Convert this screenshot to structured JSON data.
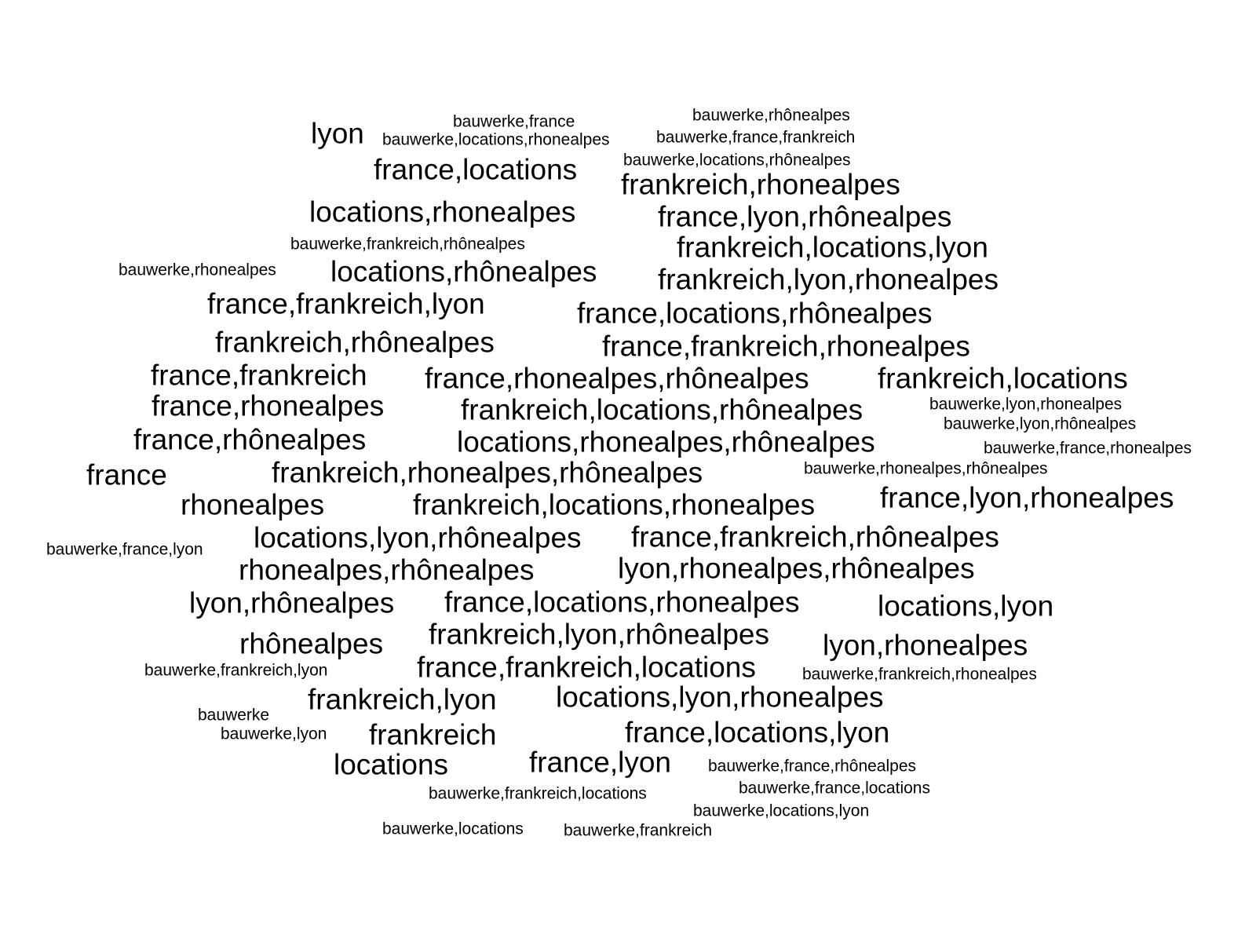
{
  "words": [
    {
      "text": "lyon",
      "weight": "large"
    },
    {
      "text": "bauwerke,france",
      "weight": "small"
    },
    {
      "text": "bauwerke,locations,rhonealpes",
      "weight": "small"
    },
    {
      "text": "bauwerke,rhônealpes",
      "weight": "small"
    },
    {
      "text": "bauwerke,france,frankreich",
      "weight": "small"
    },
    {
      "text": "bauwerke,locations,rhônealpes",
      "weight": "small"
    },
    {
      "text": "france,locations",
      "weight": "large"
    },
    {
      "text": "frankreich,rhonealpes",
      "weight": "large"
    },
    {
      "text": "locations,rhonealpes",
      "weight": "large"
    },
    {
      "text": "france,lyon,rhônealpes",
      "weight": "large"
    },
    {
      "text": "bauwerke,frankreich,rhônealpes",
      "weight": "small"
    },
    {
      "text": "frankreich,locations,lyon",
      "weight": "large"
    },
    {
      "text": "bauwerke,rhonealpes",
      "weight": "small"
    },
    {
      "text": "locations,rhônealpes",
      "weight": "large"
    },
    {
      "text": "frankreich,lyon,rhonealpes",
      "weight": "large"
    },
    {
      "text": "france,frankreich,lyon",
      "weight": "large"
    },
    {
      "text": "france,locations,rhônealpes",
      "weight": "large"
    },
    {
      "text": "frankreich,rhônealpes",
      "weight": "large"
    },
    {
      "text": "france,frankreich,rhonealpes",
      "weight": "large"
    },
    {
      "text": "france,frankreich",
      "weight": "large"
    },
    {
      "text": "france,rhonealpes,rhônealpes",
      "weight": "large"
    },
    {
      "text": "frankreich,locations",
      "weight": "large"
    },
    {
      "text": "france,rhonealpes",
      "weight": "large"
    },
    {
      "text": "frankreich,locations,rhônealpes",
      "weight": "large"
    },
    {
      "text": "bauwerke,lyon,rhonealpes",
      "weight": "small"
    },
    {
      "text": "bauwerke,lyon,rhônealpes",
      "weight": "small"
    },
    {
      "text": "france,rhônealpes",
      "weight": "large"
    },
    {
      "text": "locations,rhonealpes,rhônealpes",
      "weight": "large"
    },
    {
      "text": "bauwerke,france,rhonealpes",
      "weight": "small"
    },
    {
      "text": "france",
      "weight": "large"
    },
    {
      "text": "frankreich,rhonealpes,rhônealpes",
      "weight": "large"
    },
    {
      "text": "bauwerke,rhonealpes,rhônealpes",
      "weight": "small"
    },
    {
      "text": "france,lyon,rhonealpes",
      "weight": "large"
    },
    {
      "text": "rhonealpes",
      "weight": "large"
    },
    {
      "text": "frankreich,locations,rhonealpes",
      "weight": "large"
    },
    {
      "text": "locations,lyon,rhônealpes",
      "weight": "large"
    },
    {
      "text": "france,frankreich,rhônealpes",
      "weight": "large"
    },
    {
      "text": "bauwerke,france,lyon",
      "weight": "small"
    },
    {
      "text": "rhonealpes,rhônealpes",
      "weight": "large"
    },
    {
      "text": "lyon,rhonealpes,rhônealpes",
      "weight": "large"
    },
    {
      "text": "lyon,rhônealpes",
      "weight": "large"
    },
    {
      "text": "france,locations,rhonealpes",
      "weight": "large"
    },
    {
      "text": "locations,lyon",
      "weight": "large"
    },
    {
      "text": "rhônealpes",
      "weight": "large"
    },
    {
      "text": "frankreich,lyon,rhônealpes",
      "weight": "large"
    },
    {
      "text": "lyon,rhonealpes",
      "weight": "large"
    },
    {
      "text": "bauwerke,frankreich,lyon",
      "weight": "small"
    },
    {
      "text": "france,frankreich,locations",
      "weight": "large"
    },
    {
      "text": "bauwerke,frankreich,rhonealpes",
      "weight": "small"
    },
    {
      "text": "frankreich,lyon",
      "weight": "large"
    },
    {
      "text": "locations,lyon,rhonealpes",
      "weight": "large"
    },
    {
      "text": "bauwerke",
      "weight": "small"
    },
    {
      "text": "bauwerke,lyon",
      "weight": "small"
    },
    {
      "text": "frankreich",
      "weight": "large"
    },
    {
      "text": "france,locations,lyon",
      "weight": "large"
    },
    {
      "text": "locations",
      "weight": "large"
    },
    {
      "text": "france,lyon",
      "weight": "large"
    },
    {
      "text": "bauwerke,france,rhônealpes",
      "weight": "small"
    },
    {
      "text": "bauwerke,france,locations",
      "weight": "small"
    },
    {
      "text": "bauwerke,frankreich,locations",
      "weight": "small"
    },
    {
      "text": "bauwerke,locations,lyon",
      "weight": "small"
    },
    {
      "text": "bauwerke,locations",
      "weight": "small"
    },
    {
      "text": "bauwerke,frankreich",
      "weight": "small"
    }
  ]
}
